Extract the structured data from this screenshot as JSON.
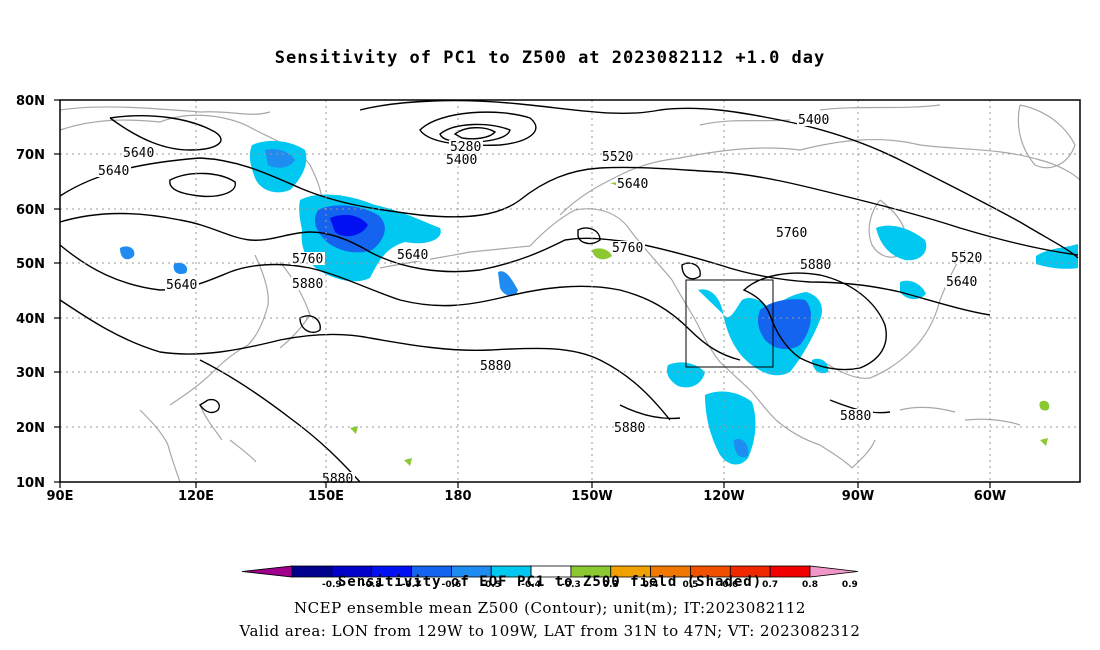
{
  "title": "Sensitivity of PC1 to Z500 at 2023082112 +1.0 day",
  "lat_labels": [
    "80N",
    "70N",
    "60N",
    "50N",
    "40N",
    "30N",
    "20N",
    "10N"
  ],
  "lon_labels": [
    "90E",
    "120E",
    "150E",
    "180",
    "150W",
    "120W",
    "90W",
    "60W"
  ],
  "contour_labels": [
    "5640",
    "5640",
    "5640",
    "5280",
    "5400",
    "5520",
    "5640",
    "5760",
    "5640",
    "5760",
    "5880",
    "5760",
    "5880",
    "5400",
    "5520",
    "5640",
    "5880",
    "5880",
    "5880",
    "5880"
  ],
  "colorbar": {
    "labels": [
      "-0.9",
      "-0.8",
      "-0.7",
      "-0.6",
      "-0.5",
      "-0.4",
      "-0.3",
      "0.3",
      "0.4",
      "0.5",
      "0.6",
      "0.7",
      "0.8",
      "0.9"
    ],
    "colors": [
      "#a0008c",
      "#00008c",
      "#0000c8",
      "#0010f0",
      "#1464f0",
      "#1e8cf0",
      "#00c8f0",
      "#ffffff",
      "#8cc832",
      "#f0a000",
      "#f07800",
      "#f05000",
      "#f02800",
      "#f00000",
      "#f096c8"
    ]
  },
  "captions": {
    "line1": "Sensitivity of EOF PC1 to Z500 field (Shaded)",
    "line2": "NCEP ensemble mean Z500 (Contour); unit(m); IT:2023082112",
    "line3": "Valid area: LON from 129W to 109W, LAT from 31N to 47N; VT: 2023082312"
  }
}
